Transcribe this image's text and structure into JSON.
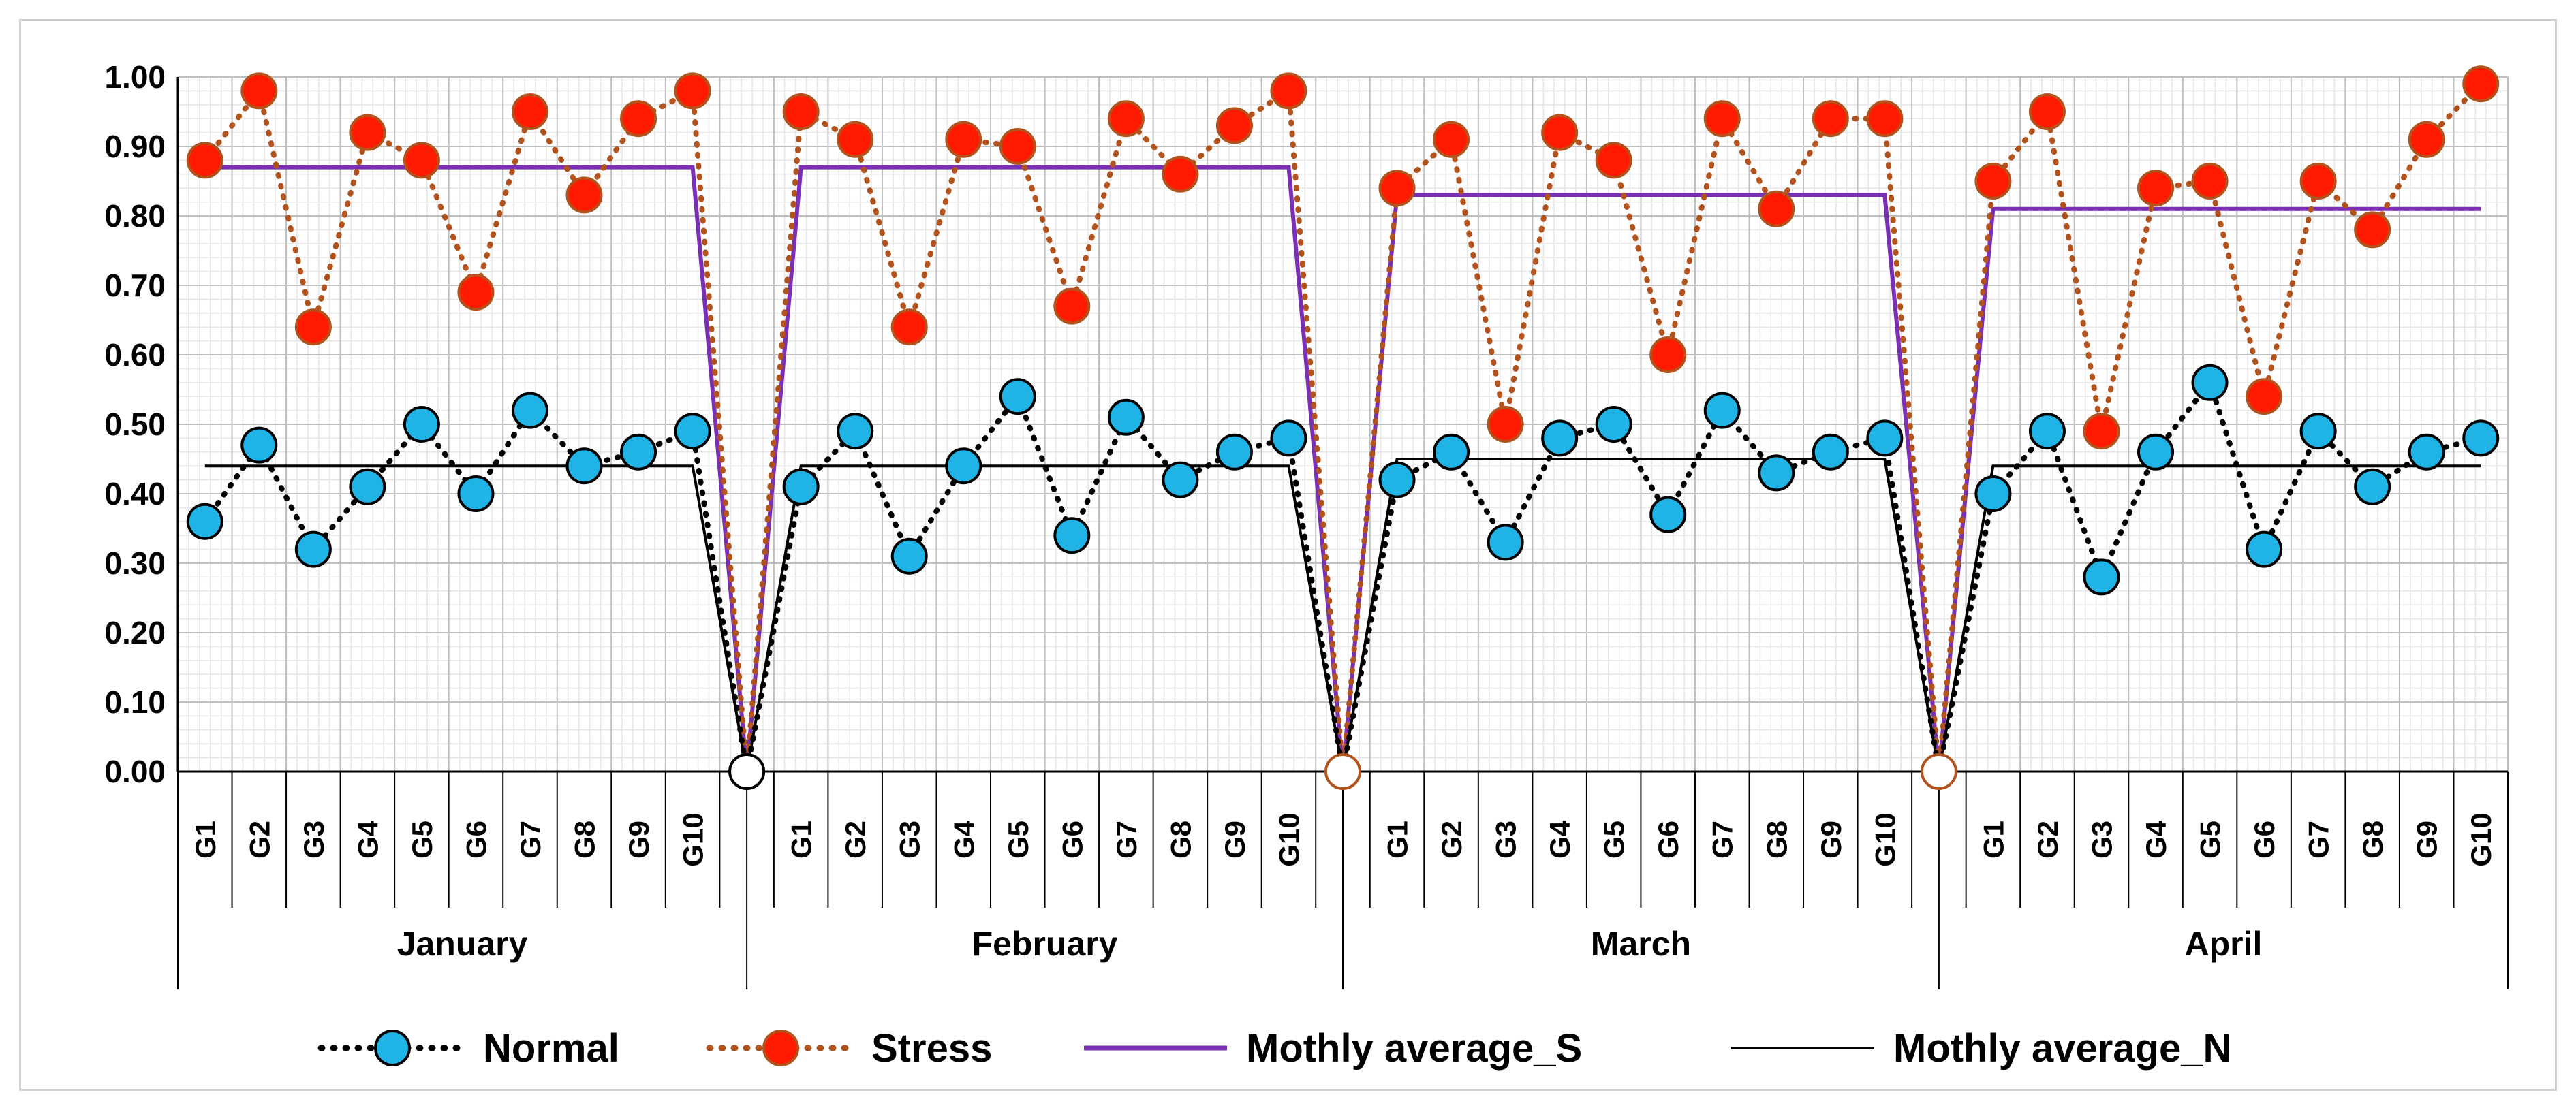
{
  "chart_data": {
    "type": "line",
    "title": "",
    "xlabel": "",
    "ylabel": "",
    "ylim": [
      0,
      1.0
    ],
    "yticks": [
      "0.00",
      "0.10",
      "0.20",
      "0.30",
      "0.40",
      "0.50",
      "0.60",
      "0.70",
      "0.80",
      "0.90",
      "1.00"
    ],
    "grid": true,
    "legend_position": "bottom",
    "months": [
      "January",
      "February",
      "March",
      "April"
    ],
    "groups": [
      "G1",
      "G2",
      "G3",
      "G4",
      "G5",
      "G6",
      "G7",
      "G8",
      "G9",
      "G10"
    ],
    "series": [
      {
        "name": "Normal",
        "style": "dotted-circle",
        "line_color": "#000000",
        "marker_color": "#1fb3e6",
        "values": [
          [
            0.36,
            0.47,
            0.32,
            0.41,
            0.5,
            0.4,
            0.52,
            0.44,
            0.46,
            0.49
          ],
          [
            0.41,
            0.49,
            0.31,
            0.44,
            0.54,
            0.34,
            0.51,
            0.42,
            0.46,
            0.48
          ],
          [
            0.42,
            0.46,
            0.33,
            0.48,
            0.5,
            0.37,
            0.52,
            0.43,
            0.46,
            0.48
          ],
          [
            0.4,
            0.49,
            0.28,
            0.46,
            0.56,
            0.32,
            0.49,
            0.41,
            0.46,
            0.48
          ]
        ]
      },
      {
        "name": "Stress",
        "style": "dotted-circle",
        "line_color": "#b2521c",
        "marker_color": "#ff1a00",
        "values": [
          [
            0.88,
            0.98,
            0.64,
            0.92,
            0.88,
            0.69,
            0.95,
            0.83,
            0.94,
            0.98
          ],
          [
            0.95,
            0.91,
            0.64,
            0.91,
            0.9,
            0.67,
            0.94,
            0.86,
            0.93,
            0.98
          ],
          [
            0.84,
            0.91,
            0.5,
            0.92,
            0.88,
            0.6,
            0.94,
            0.81,
            0.94,
            0.94
          ],
          [
            0.85,
            0.95,
            0.49,
            0.84,
            0.85,
            0.54,
            0.85,
            0.78,
            0.91,
            0.99
          ]
        ]
      },
      {
        "name": "Mothly average_S",
        "style": "solid",
        "line_color": "#7b2fb5",
        "values": [
          0.87,
          0.87,
          0.83,
          0.81
        ]
      },
      {
        "name": "Mothly average_N",
        "style": "solid",
        "line_color": "#000000",
        "values": [
          0.44,
          0.44,
          0.45,
          0.44
        ]
      }
    ]
  }
}
